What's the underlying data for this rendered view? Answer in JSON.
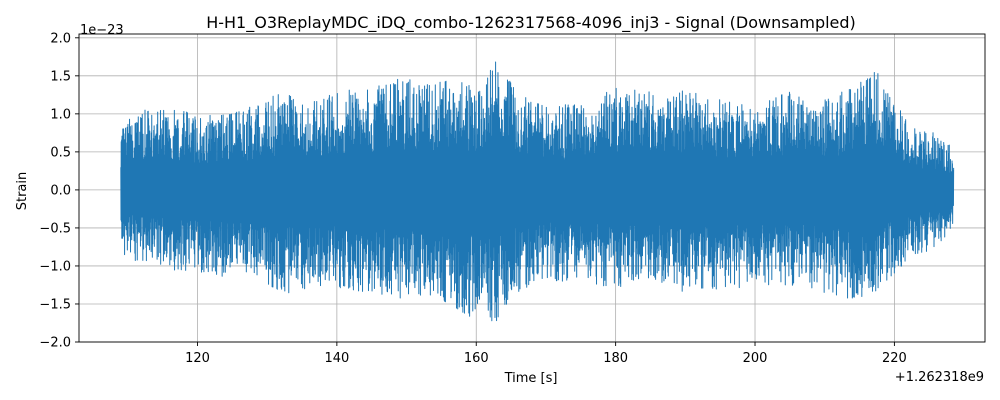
{
  "chart_data": {
    "type": "line",
    "title": "H-H1_O3ReplayMDC_iDQ_combo-1262317568-4096_inj3 - Signal (Downsampled)",
    "xlabel": "Time [s]",
    "ylabel": "Strain",
    "x_offset_label": "+1.262318e9",
    "y_scale_label": "1e−23",
    "xlim": [
      103,
      233
    ],
    "ylim": [
      -2.0,
      2.05
    ],
    "x_ticks": [
      120,
      140,
      160,
      180,
      200,
      220
    ],
    "x_tick_labels": [
      "120",
      "140",
      "160",
      "180",
      "200",
      "220"
    ],
    "y_ticks": [
      -2.0,
      -1.5,
      -1.0,
      -0.5,
      0.0,
      0.5,
      1.0,
      1.5,
      2.0
    ],
    "y_tick_labels": [
      "−2.0",
      "−1.5",
      "−1.0",
      "−0.5",
      "0.0",
      "0.5",
      "1.0",
      "1.5",
      "2.0"
    ],
    "grid": true,
    "line_color": "#1f77b4",
    "series": [
      {
        "x_start": 109,
        "x_end": 228.5,
        "envelope": [
          {
            "x": 109,
            "max": 0.85,
            "min": -0.9
          },
          {
            "x": 112,
            "max": 1.05,
            "min": -0.95
          },
          {
            "x": 116,
            "max": 1.1,
            "min": -1.05
          },
          {
            "x": 120,
            "max": 1.0,
            "min": -1.1
          },
          {
            "x": 124,
            "max": 1.0,
            "min": -1.2
          },
          {
            "x": 128,
            "max": 1.1,
            "min": -1.1
          },
          {
            "x": 132,
            "max": 1.3,
            "min": -1.4
          },
          {
            "x": 136,
            "max": 1.15,
            "min": -1.3
          },
          {
            "x": 140,
            "max": 1.3,
            "min": -1.3
          },
          {
            "x": 144,
            "max": 1.35,
            "min": -1.35
          },
          {
            "x": 148,
            "max": 1.45,
            "min": -1.45
          },
          {
            "x": 152,
            "max": 1.5,
            "min": -1.4
          },
          {
            "x": 156,
            "max": 1.45,
            "min": -1.5
          },
          {
            "x": 159,
            "max": 1.4,
            "min": -1.7
          },
          {
            "x": 161,
            "max": 1.3,
            "min": -1.5
          },
          {
            "x": 162.5,
            "max": 1.85,
            "min": -1.8
          },
          {
            "x": 165,
            "max": 1.4,
            "min": -1.4
          },
          {
            "x": 170,
            "max": 1.1,
            "min": -1.2
          },
          {
            "x": 175,
            "max": 1.15,
            "min": -1.2
          },
          {
            "x": 180,
            "max": 1.35,
            "min": -1.3
          },
          {
            "x": 185,
            "max": 1.3,
            "min": -1.2
          },
          {
            "x": 190,
            "max": 1.3,
            "min": -1.4
          },
          {
            "x": 195,
            "max": 1.2,
            "min": -1.3
          },
          {
            "x": 200,
            "max": 1.1,
            "min": -1.3
          },
          {
            "x": 205,
            "max": 1.3,
            "min": -1.25
          },
          {
            "x": 210,
            "max": 1.2,
            "min": -1.35
          },
          {
            "x": 214,
            "max": 1.35,
            "min": -1.45
          },
          {
            "x": 217.5,
            "max": 1.57,
            "min": -1.35
          },
          {
            "x": 220,
            "max": 1.2,
            "min": -1.1
          },
          {
            "x": 223,
            "max": 0.8,
            "min": -0.9
          },
          {
            "x": 226,
            "max": 0.75,
            "min": -0.75
          },
          {
            "x": 228.5,
            "max": 0.55,
            "min": -0.5
          }
        ]
      }
    ]
  }
}
